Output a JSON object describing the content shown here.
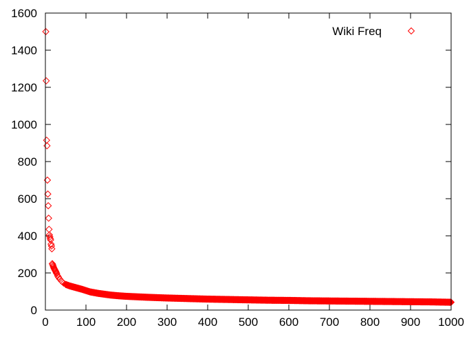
{
  "chart_data": {
    "type": "scatter",
    "title": "",
    "xlabel": "",
    "ylabel": "",
    "xlim": [
      0,
      1000
    ],
    "ylim": [
      0,
      1600
    ],
    "x_ticks": [
      0,
      100,
      200,
      300,
      400,
      500,
      600,
      700,
      800,
      900,
      1000
    ],
    "y_ticks": [
      0,
      200,
      400,
      600,
      800,
      1000,
      1200,
      1400,
      1600
    ],
    "grid": false,
    "legend_position": "top-right",
    "marker": "diamond-open",
    "series": [
      {
        "name": "Wiki Freq",
        "color": "#ff0000",
        "points": [
          [
            1,
            1500
          ],
          [
            2,
            1235
          ],
          [
            3,
            915
          ],
          [
            4,
            885
          ],
          [
            5,
            700
          ],
          [
            6,
            625
          ],
          [
            7,
            562
          ],
          [
            8,
            495
          ],
          [
            9,
            435
          ],
          [
            10,
            405
          ],
          [
            11,
            395
          ],
          [
            12,
            385
          ],
          [
            13,
            378
          ],
          [
            14,
            355
          ],
          [
            15,
            345
          ],
          [
            16,
            330
          ],
          [
            17,
            250
          ],
          [
            18,
            245
          ],
          [
            19,
            238
          ],
          [
            20,
            232
          ],
          [
            21,
            226
          ],
          [
            22,
            222
          ],
          [
            23,
            218
          ],
          [
            24,
            214
          ],
          [
            25,
            210
          ],
          [
            26,
            205
          ],
          [
            27,
            200
          ],
          [
            28,
            196
          ],
          [
            30,
            185
          ],
          [
            32,
            178
          ],
          [
            35,
            168
          ],
          [
            40,
            155
          ],
          [
            45,
            145
          ],
          [
            50,
            138
          ],
          [
            60,
            130
          ],
          [
            70,
            124
          ],
          [
            80,
            118
          ],
          [
            90,
            112
          ],
          [
            100,
            105
          ],
          [
            110,
            98
          ],
          [
            120,
            94
          ],
          [
            130,
            90
          ],
          [
            140,
            87
          ],
          [
            150,
            84
          ],
          [
            160,
            81
          ],
          [
            180,
            77
          ],
          [
            200,
            74
          ],
          [
            220,
            72
          ],
          [
            250,
            69
          ],
          [
            275,
            67
          ],
          [
            300,
            65
          ],
          [
            350,
            62
          ],
          [
            400,
            59
          ],
          [
            450,
            57
          ],
          [
            500,
            55
          ],
          [
            550,
            53
          ],
          [
            600,
            52
          ],
          [
            650,
            50
          ],
          [
            700,
            49
          ],
          [
            750,
            48
          ],
          [
            800,
            47
          ],
          [
            850,
            46
          ],
          [
            900,
            45
          ],
          [
            950,
            44
          ],
          [
            1000,
            42
          ]
        ]
      }
    ]
  }
}
